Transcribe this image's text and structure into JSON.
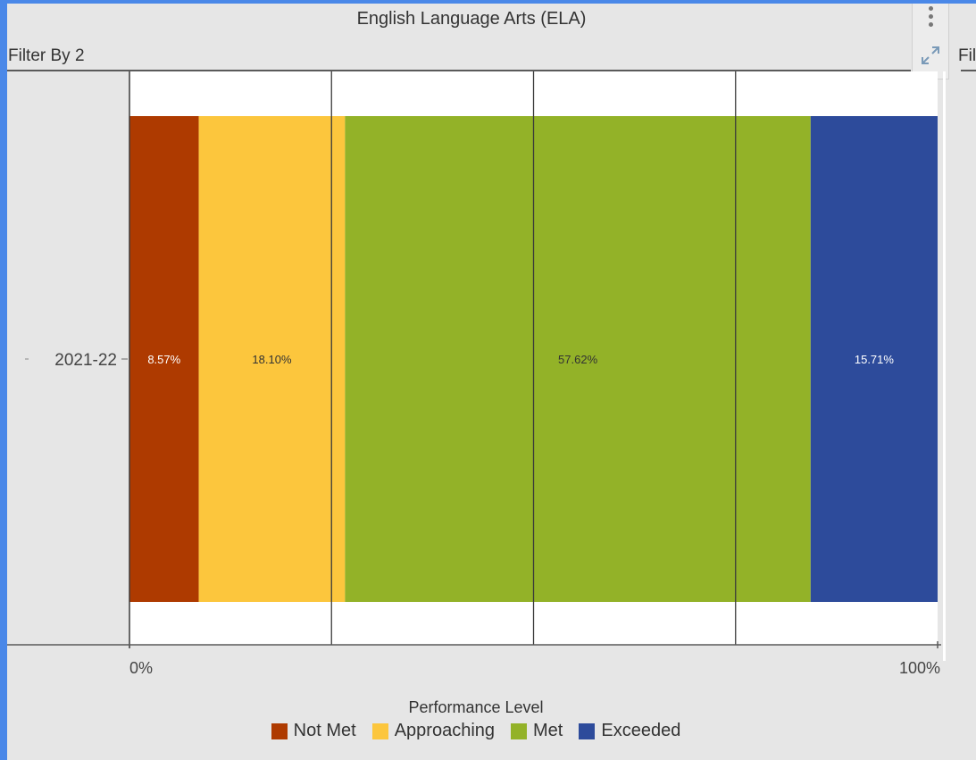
{
  "header": {
    "title": "English Language Arts (ELA)",
    "filter_label": "Filter By 2",
    "filter_label_right": "Fil"
  },
  "toolbar": {
    "more_icon": "more-vertical-icon",
    "expand_icon": "expand-icon"
  },
  "chart_data": {
    "type": "bar",
    "orientation": "horizontal",
    "stacked": true,
    "normalized": true,
    "categories": [
      "2021-22"
    ],
    "series": [
      {
        "name": "Not Met",
        "values": [
          8.57
        ],
        "label": "8.57%",
        "color": "#ae3a00",
        "label_color": "#ffffff"
      },
      {
        "name": "Approaching",
        "values": [
          18.1
        ],
        "label": "18.10%",
        "color": "#fcc63d",
        "label_color": "#333333"
      },
      {
        "name": "Met",
        "values": [
          57.62
        ],
        "label": "57.62%",
        "color": "#93b228",
        "label_color": "#333333"
      },
      {
        "name": "Exceeded",
        "values": [
          15.71
        ],
        "label": "15.71%",
        "color": "#2d4b9b",
        "label_color": "#ffffff"
      }
    ],
    "xlim": [
      0,
      100
    ],
    "x_ticks": [
      "0%",
      "100%"
    ],
    "grid": true,
    "legend_title": "Performance Level",
    "legend_position": "bottom"
  }
}
